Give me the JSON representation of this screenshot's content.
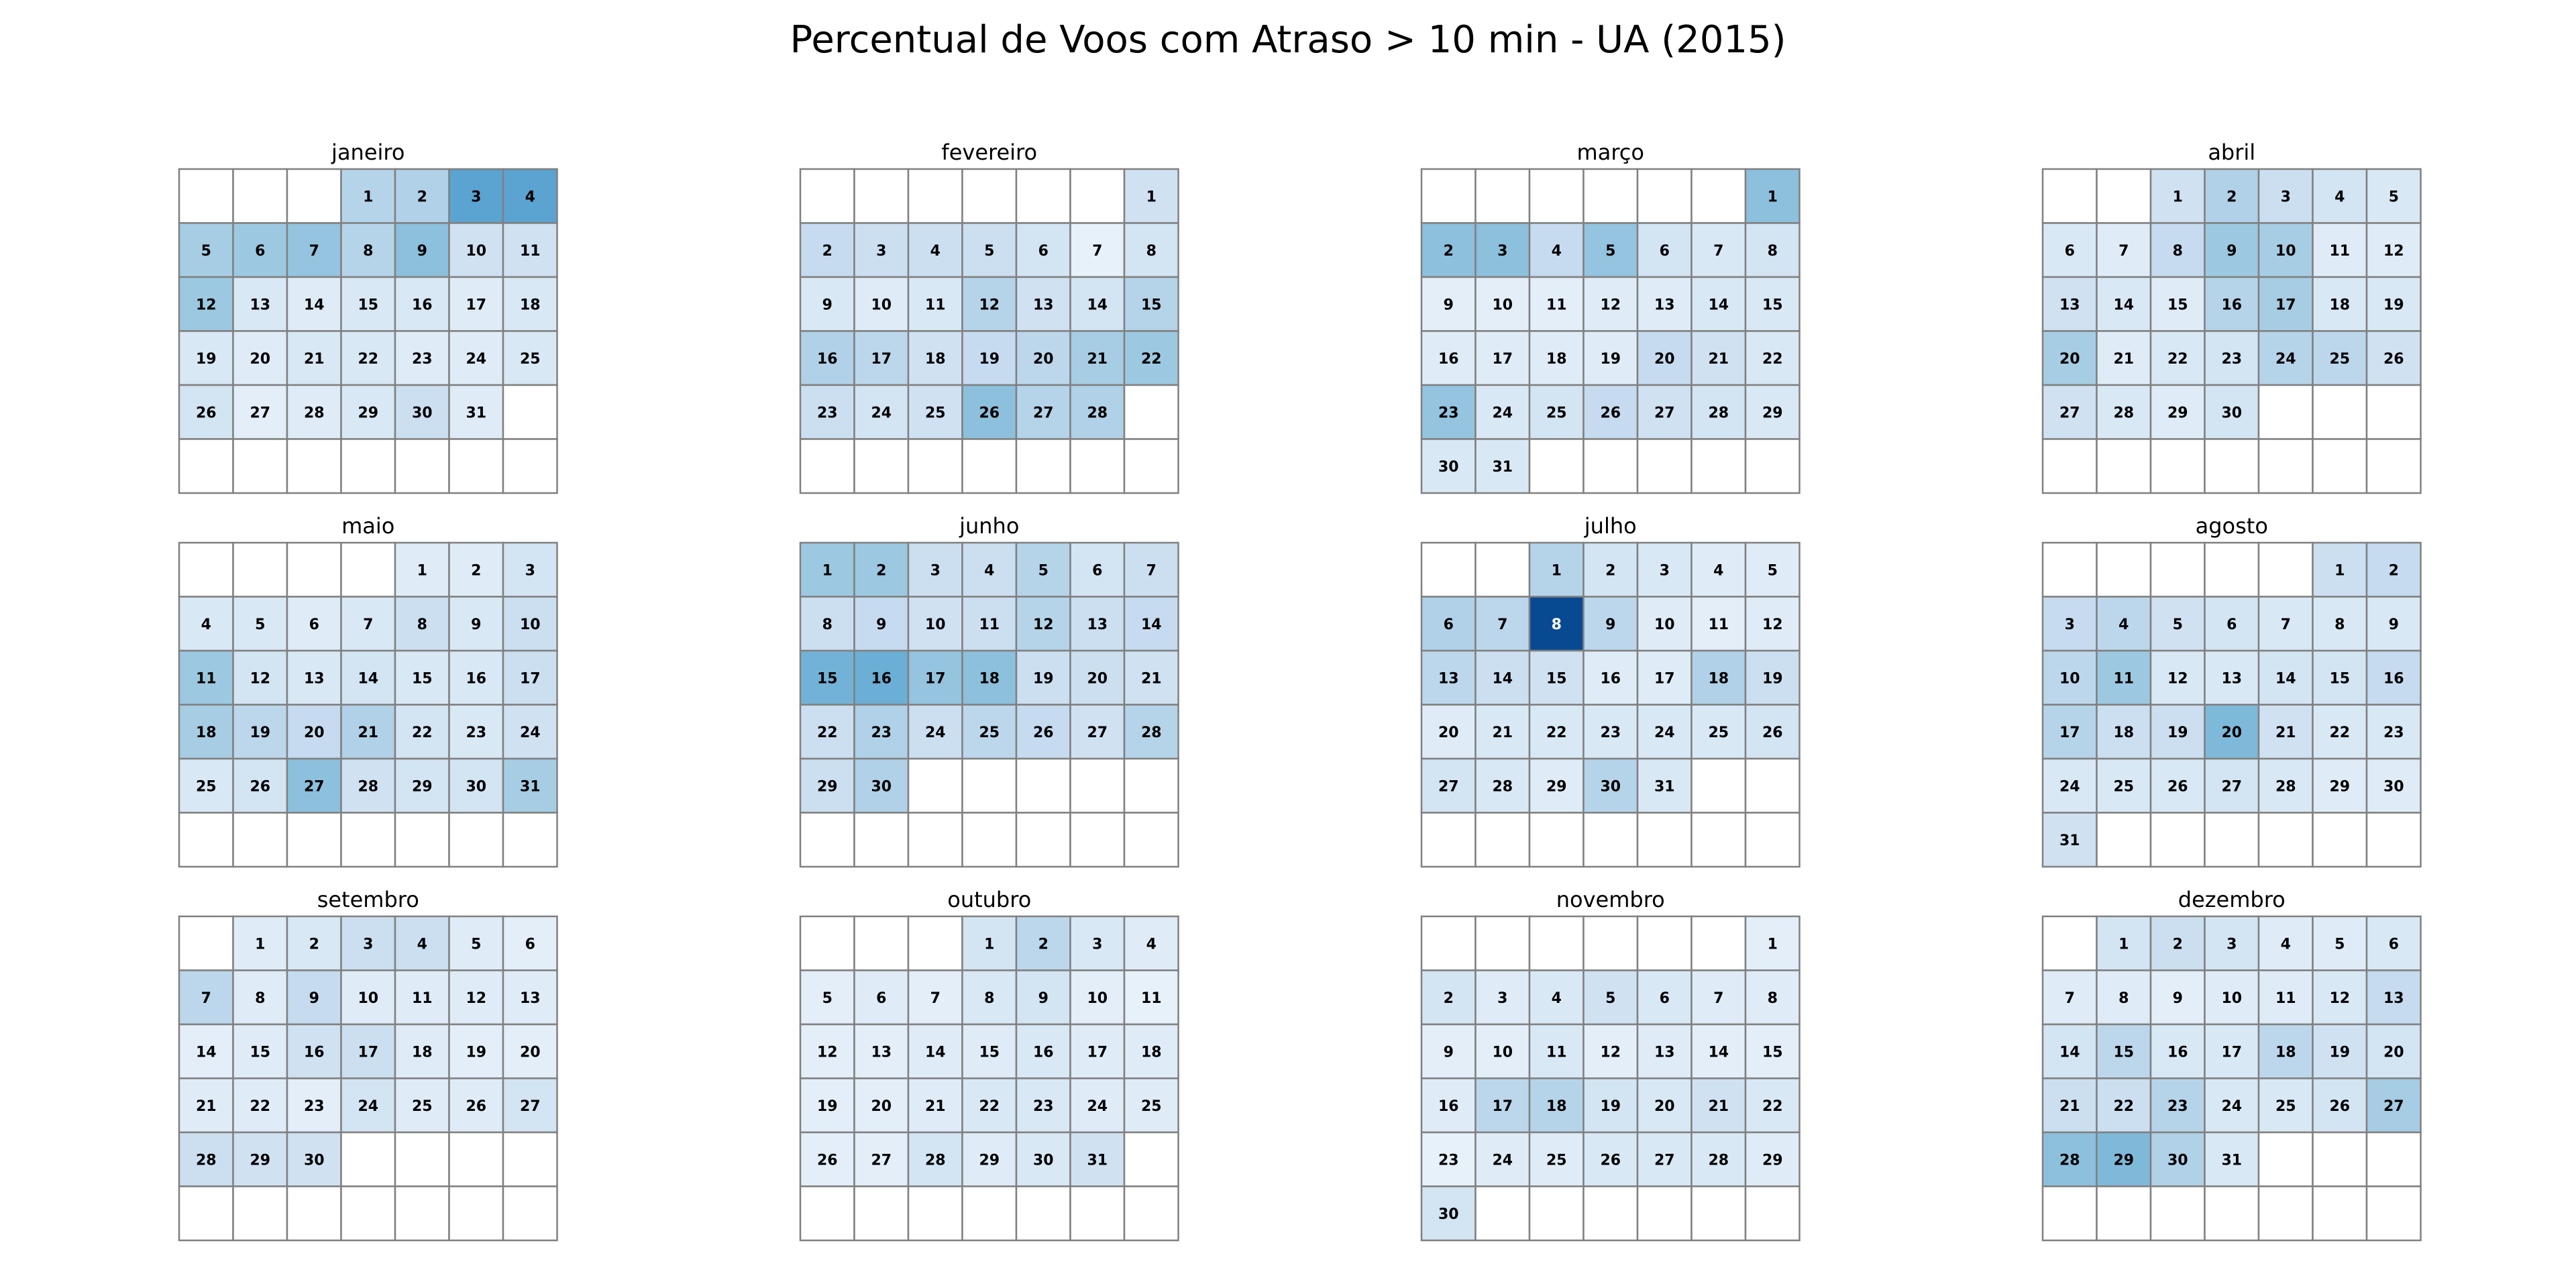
{
  "chart_data": {
    "type": "heatmap",
    "title": "Percentual de Voos com Atraso > 10 min - UA (2015)",
    "year": 2015,
    "layout": "calendar-grid-3x4",
    "week_start": "monday",
    "colormap": "Blues",
    "color_scale_range": [
      0,
      1
    ],
    "colorbar": false,
    "months": [
      {
        "name": "janeiro",
        "first_weekday": 3,
        "days": 31,
        "values": [
          0.3,
          0.32,
          0.55,
          0.55,
          0.35,
          0.38,
          0.4,
          0.3,
          0.42,
          0.2,
          0.2,
          0.38,
          0.15,
          0.12,
          0.15,
          0.15,
          0.12,
          0.15,
          0.15,
          0.12,
          0.15,
          0.15,
          0.12,
          0.12,
          0.15,
          0.18,
          0.1,
          0.12,
          0.15,
          0.22,
          0.12
        ]
      },
      {
        "name": "fevereiro",
        "first_weekday": 6,
        "days": 28,
        "values": [
          0.2,
          0.25,
          0.22,
          0.22,
          0.22,
          0.18,
          0.08,
          0.18,
          0.15,
          0.12,
          0.15,
          0.3,
          0.2,
          0.18,
          0.3,
          0.32,
          0.28,
          0.2,
          0.25,
          0.28,
          0.35,
          0.38,
          0.22,
          0.18,
          0.2,
          0.42,
          0.3,
          0.32
        ]
      },
      {
        "name": "março",
        "first_weekday": 6,
        "days": 31,
        "values": [
          0.42,
          0.42,
          0.42,
          0.25,
          0.4,
          0.18,
          0.15,
          0.18,
          0.1,
          0.1,
          0.1,
          0.12,
          0.12,
          0.15,
          0.15,
          0.12,
          0.12,
          0.12,
          0.12,
          0.25,
          0.2,
          0.15,
          0.4,
          0.15,
          0.18,
          0.25,
          0.2,
          0.18,
          0.15,
          0.15,
          0.15
        ]
      },
      {
        "name": "abril",
        "first_weekday": 2,
        "days": 30,
        "values": [
          0.2,
          0.32,
          0.22,
          0.18,
          0.15,
          0.15,
          0.12,
          0.25,
          0.38,
          0.35,
          0.12,
          0.12,
          0.2,
          0.15,
          0.12,
          0.3,
          0.35,
          0.15,
          0.15,
          0.35,
          0.12,
          0.15,
          0.18,
          0.3,
          0.28,
          0.2,
          0.2,
          0.15,
          0.12,
          0.18
        ]
      },
      {
        "name": "maio",
        "first_weekday": 4,
        "days": 31,
        "values": [
          0.12,
          0.12,
          0.18,
          0.15,
          0.15,
          0.12,
          0.15,
          0.22,
          0.15,
          0.22,
          0.38,
          0.18,
          0.15,
          0.18,
          0.15,
          0.15,
          0.22,
          0.35,
          0.28,
          0.25,
          0.32,
          0.18,
          0.15,
          0.2,
          0.15,
          0.18,
          0.42,
          0.2,
          0.18,
          0.18,
          0.35
        ]
      },
      {
        "name": "junho",
        "first_weekday": 0,
        "days": 30,
        "values": [
          0.38,
          0.38,
          0.22,
          0.22,
          0.3,
          0.18,
          0.22,
          0.22,
          0.25,
          0.2,
          0.22,
          0.3,
          0.22,
          0.25,
          0.48,
          0.5,
          0.4,
          0.42,
          0.22,
          0.22,
          0.2,
          0.22,
          0.32,
          0.22,
          0.28,
          0.25,
          0.2,
          0.3,
          0.22,
          0.32
        ]
      },
      {
        "name": "julho",
        "first_weekday": 2,
        "days": 31,
        "values": [
          0.3,
          0.18,
          0.15,
          0.12,
          0.12,
          0.32,
          0.28,
          0.9,
          0.28,
          0.12,
          0.1,
          0.12,
          0.28,
          0.22,
          0.2,
          0.12,
          0.12,
          0.32,
          0.22,
          0.12,
          0.15,
          0.15,
          0.15,
          0.15,
          0.15,
          0.18,
          0.18,
          0.15,
          0.12,
          0.3,
          0.15
        ]
      },
      {
        "name": "agosto",
        "first_weekday": 5,
        "days": 31,
        "values": [
          0.22,
          0.25,
          0.25,
          0.28,
          0.2,
          0.18,
          0.15,
          0.15,
          0.15,
          0.28,
          0.38,
          0.15,
          0.15,
          0.18,
          0.18,
          0.25,
          0.3,
          0.22,
          0.22,
          0.45,
          0.2,
          0.15,
          0.15,
          0.15,
          0.15,
          0.15,
          0.18,
          0.15,
          0.12,
          0.12,
          0.2
        ]
      },
      {
        "name": "setembro",
        "first_weekday": 1,
        "days": 30,
        "values": [
          0.12,
          0.15,
          0.22,
          0.22,
          0.12,
          0.1,
          0.28,
          0.12,
          0.25,
          0.12,
          0.12,
          0.12,
          0.12,
          0.1,
          0.12,
          0.2,
          0.22,
          0.12,
          0.1,
          0.1,
          0.12,
          0.12,
          0.1,
          0.18,
          0.12,
          0.12,
          0.18,
          0.22,
          0.2,
          0.2
        ]
      },
      {
        "name": "outubro",
        "first_weekday": 3,
        "days": 31,
        "values": [
          0.18,
          0.28,
          0.15,
          0.12,
          0.1,
          0.12,
          0.1,
          0.15,
          0.18,
          0.1,
          0.08,
          0.1,
          0.1,
          0.12,
          0.12,
          0.15,
          0.12,
          0.12,
          0.1,
          0.1,
          0.12,
          0.15,
          0.15,
          0.12,
          0.12,
          0.1,
          0.1,
          0.18,
          0.12,
          0.15,
          0.2
        ]
      },
      {
        "name": "novembro",
        "first_weekday": 6,
        "days": 30,
        "values": [
          0.1,
          0.18,
          0.12,
          0.15,
          0.2,
          0.15,
          0.12,
          0.12,
          0.1,
          0.1,
          0.15,
          0.1,
          0.12,
          0.1,
          0.1,
          0.12,
          0.28,
          0.3,
          0.18,
          0.15,
          0.2,
          0.15,
          0.08,
          0.12,
          0.12,
          0.15,
          0.15,
          0.15,
          0.12,
          0.18
        ]
      },
      {
        "name": "dezembro",
        "first_weekday": 1,
        "days": 31,
        "values": [
          0.18,
          0.22,
          0.18,
          0.12,
          0.12,
          0.15,
          0.12,
          0.12,
          0.1,
          0.12,
          0.12,
          0.15,
          0.25,
          0.18,
          0.28,
          0.15,
          0.15,
          0.28,
          0.2,
          0.18,
          0.22,
          0.22,
          0.3,
          0.15,
          0.15,
          0.18,
          0.35,
          0.42,
          0.45,
          0.32,
          0.15
        ]
      }
    ]
  }
}
